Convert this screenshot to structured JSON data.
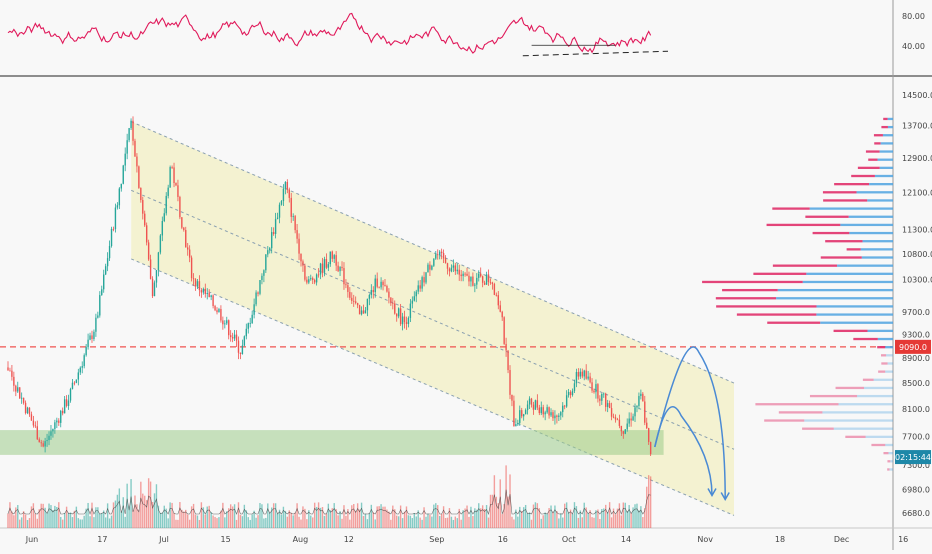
{
  "chart_data": {
    "type": "candlestick",
    "title": "",
    "colors": {
      "background": "#f8f8f8",
      "up": "#26a69a",
      "down": "#ef5350",
      "rsi_line": "#e0195a",
      "channel_fill": "#f3f0c4",
      "support_zone": "#9ccc8a",
      "resistance_line": "#ef5350",
      "projection": "#4a8ad4",
      "volume_profile_up": "#4fa3e0",
      "volume_profile_down": "#e0306a",
      "price_tag": "#e53935",
      "time_tag": "#1e88a8"
    },
    "x_axis": {
      "tick_labels": [
        "Jun",
        "17",
        "Jul",
        "15",
        "Aug",
        "12",
        "Sep",
        "16",
        "Oct",
        "14",
        "Nov",
        "18",
        "Dec",
        "16"
      ],
      "tick_days": [
        0,
        16,
        30,
        44,
        61,
        72,
        92,
        107,
        122,
        135,
        153,
        170,
        184,
        198
      ]
    },
    "price_axis": {
      "tick_labels": [
        "14500.0",
        "13700.0",
        "12900.0",
        "12100.0",
        "11300.0",
        "10800.0",
        "10300.0",
        "9700.0",
        "9300.0",
        "8900.0",
        "8500.0",
        "8100.0",
        "7700.0",
        "7300.0",
        "6980.0",
        "6680.0"
      ],
      "tick_values": [
        14500,
        13700,
        12900,
        12100,
        11300,
        10800,
        10300,
        9700,
        9300,
        8900,
        8500,
        8100,
        7700,
        7300,
        6980,
        6680
      ],
      "scale": "log"
    },
    "rsi_axis": {
      "tick_labels": [
        "80.00",
        "40.00"
      ],
      "tick_values": [
        80,
        40
      ]
    },
    "price_label": "9090.0",
    "price_label_value": 9090,
    "time_label": "02:15:44",
    "time_label_value": 7410,
    "resistance_level": 9090,
    "support_zone": [
      7440,
      7790
    ],
    "key_points": [
      {
        "day": 0,
        "price": 8750
      },
      {
        "day": 8,
        "price": 7550
      },
      {
        "day": 14,
        "price": 8300
      },
      {
        "day": 20,
        "price": 9500
      },
      {
        "day": 25,
        "price": 12000
      },
      {
        "day": 28,
        "price": 13800
      },
      {
        "day": 33,
        "price": 10000
      },
      {
        "day": 37,
        "price": 12800
      },
      {
        "day": 42,
        "price": 10300
      },
      {
        "day": 48,
        "price": 9700
      },
      {
        "day": 53,
        "price": 9000
      },
      {
        "day": 58,
        "price": 10500
      },
      {
        "day": 63,
        "price": 12300
      },
      {
        "day": 68,
        "price": 10200
      },
      {
        "day": 74,
        "price": 10800
      },
      {
        "day": 80,
        "price": 9600
      },
      {
        "day": 84,
        "price": 10300
      },
      {
        "day": 90,
        "price": 9500
      },
      {
        "day": 97,
        "price": 10800
      },
      {
        "day": 104,
        "price": 10300
      },
      {
        "day": 110,
        "price": 10300
      },
      {
        "day": 112,
        "price": 9700
      },
      {
        "day": 115,
        "price": 7900
      },
      {
        "day": 119,
        "price": 8200
      },
      {
        "day": 125,
        "price": 8000
      },
      {
        "day": 130,
        "price": 8700
      },
      {
        "day": 136,
        "price": 8200
      },
      {
        "day": 140,
        "price": 7800
      },
      {
        "day": 144,
        "price": 8300
      },
      {
        "day": 146,
        "price": 7400
      }
    ],
    "channel": {
      "upper": [
        {
          "day": 28,
          "price": 13800
        },
        {
          "day": 165,
          "price": 8500
        }
      ],
      "lower": [
        {
          "day": 28,
          "price": 10700
        },
        {
          "day": 165,
          "price": 6650
        }
      ]
    },
    "projections": [
      {
        "start": {
          "day": 147,
          "price": 7550
        },
        "peak": {
          "day": 156,
          "price": 9000
        },
        "end": {
          "day": 163,
          "price": 6850
        }
      },
      {
        "start": {
          "day": 147,
          "price": 7550
        },
        "peak": {
          "day": 152,
          "price": 8000
        },
        "end": {
          "day": 160,
          "price": 6900
        }
      }
    ]
  }
}
